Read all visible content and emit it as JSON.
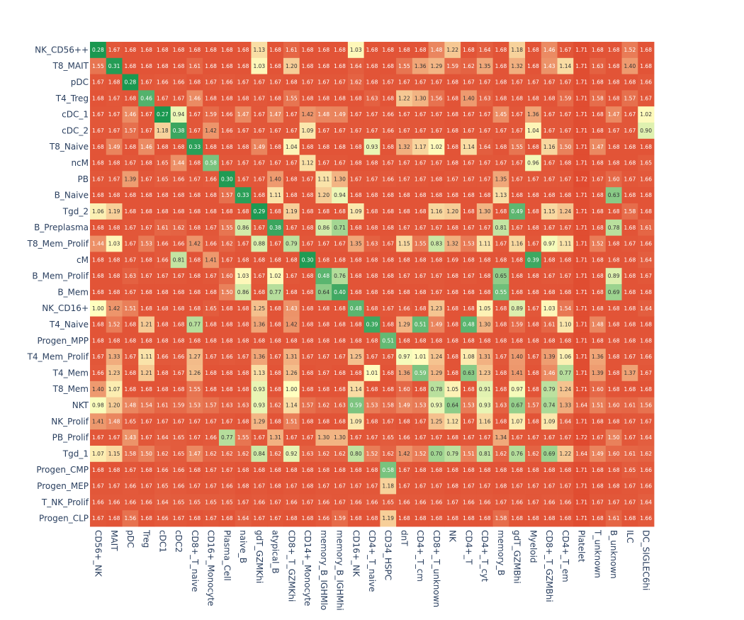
{
  "chart_data": {
    "type": "heatmap",
    "title": "",
    "xlabel": "",
    "ylabel": "",
    "grid": false,
    "colorscale": {
      "min_color": "#1a9850",
      "mid_color": "#ffffbf",
      "max_color": "#e04a2f",
      "min": 0.28,
      "mid": 1.0,
      "max": 1.72
    },
    "rows": [
      "NK_CD56++",
      "T8_MAIT",
      "pDC",
      "T4_Treg",
      "cDC_1",
      "cDC_2",
      "T8_Naive",
      "ncM",
      "PB",
      "B_Naive",
      "Tgd_2",
      "B_Preplasma",
      "T8_Mem_Prolif",
      "cM",
      "B_Mem_Prolif",
      "B_Mem",
      "NK_CD16+",
      "T4_Naive",
      "Progen_MPP",
      "T4_Mem_Prolif",
      "T4_Mem",
      "T8_Mem",
      "NKT",
      "NK_Prolif",
      "PB_Prolif",
      "Tgd_1",
      "Progen_CMP",
      "Progen_MEP",
      "T_NK_Prolif",
      "Progen_CLP"
    ],
    "columns": [
      "CD56+_NK",
      "MAIT",
      "pDC",
      "Treg",
      "cDC1",
      "cDC2",
      "CD8+_T_naive",
      "CD16+_Monocyte",
      "Plasma_Cell",
      "naive_B",
      "gdT_GZMKhi",
      "atypical_B",
      "CD8+_T_GZMKhi",
      "CD14+_Monocyte",
      "memory_B_IGHMlo",
      "memory_B_IGHMhi",
      "CD16+_NK",
      "CD4+_T_naive",
      "CD34_HSPC",
      "dnT",
      "CD4+_T_cm",
      "CD8+_T_unknown",
      "NK",
      "CD4+_T",
      "CD4+_T_cyt",
      "memory_B",
      "gdT_GZMBhi",
      "Myeloid",
      "CD8+_T_GZMBhi",
      "CD4+_T_em",
      "Platelet",
      "T_unknown",
      "B_unknown",
      "ILC",
      "DC_SIGLEC6hi"
    ],
    "values": [
      [
        0.28,
        1.67,
        1.68,
        1.68,
        1.68,
        1.68,
        1.68,
        1.68,
        1.68,
        1.68,
        1.13,
        1.68,
        1.61,
        1.68,
        1.68,
        1.68,
        1.03,
        1.68,
        1.68,
        1.68,
        1.68,
        1.48,
        1.22,
        1.68,
        1.64,
        1.68,
        1.18,
        1.68,
        1.46,
        1.67,
        1.71,
        1.68,
        1.68,
        1.52,
        1.68
      ],
      [
        1.55,
        0.31,
        1.68,
        1.68,
        1.68,
        1.68,
        1.61,
        1.68,
        1.68,
        1.68,
        1.03,
        1.68,
        1.2,
        1.68,
        1.68,
        1.68,
        1.64,
        1.68,
        1.68,
        1.55,
        1.36,
        1.29,
        1.59,
        1.62,
        1.35,
        1.68,
        1.32,
        1.68,
        1.43,
        1.14,
        1.71,
        1.63,
        1.68,
        1.4,
        1.68
      ],
      [
        1.67,
        1.68,
        0.28,
        1.67,
        1.66,
        1.66,
        1.68,
        1.67,
        1.66,
        1.67,
        1.67,
        1.67,
        1.68,
        1.67,
        1.67,
        1.67,
        1.62,
        1.68,
        1.67,
        1.67,
        1.67,
        1.67,
        1.68,
        1.67,
        1.67,
        1.68,
        1.67,
        1.67,
        1.67,
        1.67,
        1.71,
        1.68,
        1.68,
        1.68,
        1.66
      ],
      [
        1.68,
        1.67,
        1.68,
        0.46,
        1.67,
        1.67,
        1.46,
        1.68,
        1.68,
        1.68,
        1.67,
        1.68,
        1.55,
        1.68,
        1.68,
        1.68,
        1.68,
        1.63,
        1.68,
        1.22,
        1.3,
        1.56,
        1.68,
        1.4,
        1.63,
        1.68,
        1.68,
        1.68,
        1.68,
        1.59,
        1.71,
        1.58,
        1.68,
        1.57,
        1.67
      ],
      [
        1.67,
        1.67,
        1.46,
        1.67,
        0.27,
        0.94,
        1.67,
        1.59,
        1.66,
        1.47,
        1.67,
        1.47,
        1.67,
        1.42,
        1.48,
        1.49,
        1.67,
        1.67,
        1.66,
        1.67,
        1.67,
        1.67,
        1.68,
        1.67,
        1.67,
        1.45,
        1.67,
        1.36,
        1.67,
        1.67,
        1.71,
        1.68,
        1.47,
        1.67,
        1.02
      ],
      [
        1.67,
        1.67,
        1.57,
        1.67,
        1.18,
        0.38,
        1.67,
        1.42,
        1.66,
        1.67,
        1.67,
        1.67,
        1.67,
        1.09,
        1.67,
        1.67,
        1.67,
        1.67,
        1.66,
        1.67,
        1.67,
        1.67,
        1.68,
        1.67,
        1.67,
        1.67,
        1.67,
        1.04,
        1.67,
        1.67,
        1.71,
        1.68,
        1.67,
        1.67,
        0.9
      ],
      [
        1.68,
        1.49,
        1.68,
        1.46,
        1.68,
        1.68,
        0.33,
        1.68,
        1.68,
        1.68,
        1.49,
        1.68,
        1.04,
        1.68,
        1.68,
        1.68,
        1.68,
        0.93,
        1.68,
        1.32,
        1.17,
        1.02,
        1.68,
        1.14,
        1.64,
        1.68,
        1.55,
        1.68,
        1.16,
        1.5,
        1.71,
        1.47,
        1.68,
        1.68,
        1.68
      ],
      [
        1.68,
        1.68,
        1.67,
        1.68,
        1.65,
        1.44,
        1.68,
        0.58,
        1.67,
        1.67,
        1.67,
        1.67,
        1.67,
        1.12,
        1.67,
        1.67,
        1.68,
        1.68,
        1.67,
        1.67,
        1.67,
        1.67,
        1.68,
        1.67,
        1.67,
        1.67,
        1.67,
        0.96,
        1.67,
        1.68,
        1.71,
        1.68,
        1.68,
        1.68,
        1.65
      ],
      [
        1.67,
        1.67,
        1.39,
        1.67,
        1.65,
        1.66,
        1.67,
        1.66,
        0.3,
        1.67,
        1.67,
        1.4,
        1.68,
        1.67,
        1.11,
        1.3,
        1.67,
        1.67,
        1.66,
        1.67,
        1.67,
        1.68,
        1.67,
        1.67,
        1.67,
        1.35,
        1.67,
        1.67,
        1.67,
        1.67,
        1.72,
        1.67,
        1.6,
        1.67,
        1.66
      ],
      [
        1.68,
        1.68,
        1.68,
        1.68,
        1.68,
        1.68,
        1.68,
        1.68,
        1.57,
        0.33,
        1.68,
        1.11,
        1.68,
        1.68,
        1.2,
        0.94,
        1.68,
        1.68,
        1.68,
        1.68,
        1.68,
        1.68,
        1.68,
        1.68,
        1.68,
        1.13,
        1.68,
        1.68,
        1.68,
        1.68,
        1.71,
        1.68,
        0.63,
        1.68,
        1.68
      ],
      [
        1.06,
        1.19,
        1.68,
        1.68,
        1.68,
        1.68,
        1.68,
        1.68,
        1.68,
        1.68,
        0.29,
        1.68,
        1.19,
        1.68,
        1.68,
        1.68,
        1.09,
        1.68,
        1.68,
        1.68,
        1.68,
        1.16,
        1.2,
        1.68,
        1.3,
        1.68,
        0.49,
        1.68,
        1.15,
        1.24,
        1.71,
        1.68,
        1.68,
        1.58,
        1.68
      ],
      [
        1.68,
        1.68,
        1.67,
        1.67,
        1.61,
        1.62,
        1.68,
        1.67,
        1.55,
        0.86,
        1.67,
        0.38,
        1.67,
        1.68,
        0.86,
        0.71,
        1.68,
        1.68,
        1.68,
        1.67,
        1.67,
        1.67,
        1.68,
        1.67,
        1.67,
        0.81,
        1.67,
        1.68,
        1.67,
        1.67,
        1.71,
        1.68,
        0.78,
        1.68,
        1.61
      ],
      [
        1.44,
        1.03,
        1.67,
        1.53,
        1.66,
        1.66,
        1.42,
        1.66,
        1.62,
        1.67,
        0.88,
        1.67,
        0.79,
        1.67,
        1.67,
        1.67,
        1.35,
        1.63,
        1.67,
        1.15,
        1.55,
        0.83,
        1.32,
        1.53,
        1.11,
        1.67,
        1.16,
        1.67,
        0.97,
        1.11,
        1.71,
        1.52,
        1.68,
        1.67,
        1.66
      ],
      [
        1.68,
        1.68,
        1.67,
        1.68,
        1.66,
        0.81,
        1.68,
        1.41,
        1.67,
        1.68,
        1.68,
        1.68,
        1.68,
        0.3,
        1.68,
        1.68,
        1.68,
        1.68,
        1.68,
        1.68,
        1.68,
        1.68,
        1.69,
        1.68,
        1.68,
        1.68,
        1.68,
        0.39,
        1.68,
        1.68,
        1.71,
        1.68,
        1.68,
        1.68,
        1.64
      ],
      [
        1.68,
        1.68,
        1.63,
        1.67,
        1.67,
        1.67,
        1.68,
        1.67,
        1.6,
        1.03,
        1.67,
        1.02,
        1.67,
        1.68,
        0.48,
        0.76,
        1.68,
        1.68,
        1.68,
        1.67,
        1.67,
        1.67,
        1.68,
        1.67,
        1.68,
        0.65,
        1.68,
        1.68,
        1.67,
        1.67,
        1.71,
        1.68,
        0.89,
        1.68,
        1.67
      ],
      [
        1.68,
        1.68,
        1.67,
        1.68,
        1.68,
        1.68,
        1.68,
        1.68,
        1.5,
        0.86,
        1.68,
        0.77,
        1.68,
        1.68,
        0.64,
        0.4,
        1.68,
        1.68,
        1.68,
        1.68,
        1.68,
        1.67,
        1.68,
        1.68,
        1.68,
        0.55,
        1.68,
        1.68,
        1.68,
        1.68,
        1.71,
        1.68,
        0.69,
        1.68,
        1.68
      ],
      [
        1.0,
        1.42,
        1.51,
        1.68,
        1.68,
        1.68,
        1.68,
        1.65,
        1.68,
        1.68,
        1.25,
        1.68,
        1.43,
        1.68,
        1.68,
        1.68,
        0.48,
        1.68,
        1.67,
        1.66,
        1.68,
        1.23,
        1.68,
        1.68,
        1.05,
        1.68,
        0.89,
        1.67,
        1.03,
        1.54,
        1.71,
        1.68,
        1.68,
        1.68,
        1.64
      ],
      [
        1.68,
        1.52,
        1.68,
        1.21,
        1.68,
        1.68,
        0.77,
        1.68,
        1.68,
        1.68,
        1.36,
        1.68,
        1.42,
        1.68,
        1.68,
        1.68,
        1.68,
        0.39,
        1.68,
        1.29,
        0.51,
        1.49,
        1.68,
        0.48,
        1.3,
        1.68,
        1.59,
        1.68,
        1.61,
        1.1,
        1.71,
        1.48,
        1.68,
        1.68,
        1.68
      ],
      [
        1.68,
        1.68,
        1.68,
        1.68,
        1.68,
        1.68,
        1.68,
        1.68,
        1.68,
        1.68,
        1.68,
        1.68,
        1.68,
        1.68,
        1.68,
        1.68,
        1.68,
        1.68,
        0.51,
        1.68,
        1.68,
        1.68,
        1.68,
        1.68,
        1.68,
        1.68,
        1.68,
        1.68,
        1.68,
        1.68,
        1.71,
        1.68,
        1.68,
        1.68,
        1.68
      ],
      [
        1.67,
        1.33,
        1.67,
        1.11,
        1.66,
        1.66,
        1.27,
        1.67,
        1.66,
        1.67,
        1.36,
        1.67,
        1.31,
        1.67,
        1.67,
        1.67,
        1.25,
        1.67,
        1.67,
        0.97,
        1.01,
        1.24,
        1.68,
        1.08,
        1.31,
        1.67,
        1.4,
        1.67,
        1.39,
        1.06,
        1.71,
        1.36,
        1.68,
        1.67,
        1.66
      ],
      [
        1.66,
        1.23,
        1.68,
        1.21,
        1.68,
        1.67,
        1.26,
        1.68,
        1.68,
        1.68,
        1.13,
        1.68,
        1.26,
        1.68,
        1.67,
        1.68,
        1.68,
        1.01,
        1.68,
        1.36,
        0.59,
        1.29,
        1.68,
        0.63,
        1.23,
        1.68,
        1.41,
        1.68,
        1.46,
        0.77,
        1.71,
        1.39,
        1.68,
        1.37,
        1.67
      ],
      [
        1.4,
        1.07,
        1.68,
        1.68,
        1.68,
        1.68,
        1.55,
        1.68,
        1.68,
        1.68,
        0.93,
        1.68,
        1.0,
        1.68,
        1.68,
        1.68,
        1.14,
        1.68,
        1.68,
        1.6,
        1.68,
        0.78,
        1.05,
        1.68,
        0.91,
        1.68,
        0.97,
        1.68,
        0.79,
        1.24,
        1.71,
        1.6,
        1.68,
        1.68,
        1.68
      ],
      [
        0.98,
        1.2,
        1.48,
        1.54,
        1.61,
        1.59,
        1.53,
        1.57,
        1.63,
        1.63,
        0.93,
        1.62,
        1.14,
        1.57,
        1.62,
        1.63,
        0.59,
        1.53,
        1.58,
        1.49,
        1.53,
        0.93,
        0.64,
        1.53,
        0.93,
        1.63,
        0.67,
        1.57,
        0.74,
        1.33,
        1.64,
        1.51,
        1.6,
        1.61,
        1.56
      ],
      [
        1.41,
        1.48,
        1.65,
        1.67,
        1.67,
        1.67,
        1.67,
        1.67,
        1.67,
        1.68,
        1.29,
        1.68,
        1.51,
        1.68,
        1.68,
        1.68,
        1.09,
        1.68,
        1.67,
        1.68,
        1.67,
        1.25,
        1.12,
        1.67,
        1.16,
        1.68,
        1.07,
        1.68,
        1.09,
        1.64,
        1.71,
        1.68,
        1.68,
        1.67,
        1.67
      ],
      [
        1.67,
        1.67,
        1.43,
        1.67,
        1.64,
        1.65,
        1.67,
        1.66,
        0.77,
        1.55,
        1.67,
        1.31,
        1.67,
        1.67,
        1.3,
        1.3,
        1.67,
        1.67,
        1.65,
        1.66,
        1.67,
        1.67,
        1.68,
        1.67,
        1.67,
        1.34,
        1.67,
        1.67,
        1.67,
        1.67,
        1.72,
        1.67,
        1.5,
        1.67,
        1.64
      ],
      [
        1.07,
        1.15,
        1.58,
        1.5,
        1.62,
        1.65,
        1.47,
        1.62,
        1.62,
        1.62,
        0.84,
        1.62,
        0.92,
        1.63,
        1.62,
        1.62,
        0.8,
        1.52,
        1.62,
        1.42,
        1.52,
        0.7,
        0.79,
        1.51,
        0.81,
        1.62,
        0.76,
        1.62,
        0.69,
        1.22,
        1.64,
        1.49,
        1.6,
        1.61,
        1.62
      ],
      [
        1.68,
        1.68,
        1.67,
        1.68,
        1.66,
        1.66,
        1.68,
        1.67,
        1.67,
        1.68,
        1.68,
        1.68,
        1.68,
        1.68,
        1.68,
        1.68,
        1.68,
        1.68,
        0.58,
        1.67,
        1.68,
        1.68,
        1.68,
        1.68,
        1.68,
        1.68,
        1.68,
        1.68,
        1.68,
        1.68,
        1.71,
        1.68,
        1.68,
        1.65,
        1.66
      ],
      [
        1.67,
        1.67,
        1.66,
        1.67,
        1.65,
        1.66,
        1.67,
        1.67,
        1.66,
        1.68,
        1.67,
        1.68,
        1.67,
        1.68,
        1.67,
        1.67,
        1.67,
        1.67,
        1.18,
        1.67,
        1.67,
        1.67,
        1.68,
        1.67,
        1.67,
        1.68,
        1.67,
        1.67,
        1.67,
        1.67,
        1.71,
        1.68,
        1.68,
        1.67,
        1.66
      ],
      [
        1.66,
        1.66,
        1.66,
        1.66,
        1.64,
        1.65,
        1.65,
        1.65,
        1.65,
        1.67,
        1.66,
        1.67,
        1.66,
        1.67,
        1.66,
        1.67,
        1.66,
        1.66,
        1.65,
        1.66,
        1.66,
        1.66,
        1.67,
        1.66,
        1.66,
        1.67,
        1.66,
        1.67,
        1.66,
        1.66,
        1.71,
        1.67,
        1.67,
        1.67,
        1.64
      ],
      [
        1.67,
        1.68,
        1.56,
        1.68,
        1.66,
        1.67,
        1.68,
        1.67,
        1.68,
        1.64,
        1.67,
        1.67,
        1.68,
        1.68,
        1.66,
        1.59,
        1.68,
        1.68,
        1.19,
        1.68,
        1.68,
        1.68,
        1.68,
        1.68,
        1.68,
        1.58,
        1.68,
        1.68,
        1.68,
        1.68,
        1.71,
        1.68,
        1.61,
        1.68,
        1.66
      ]
    ]
  }
}
